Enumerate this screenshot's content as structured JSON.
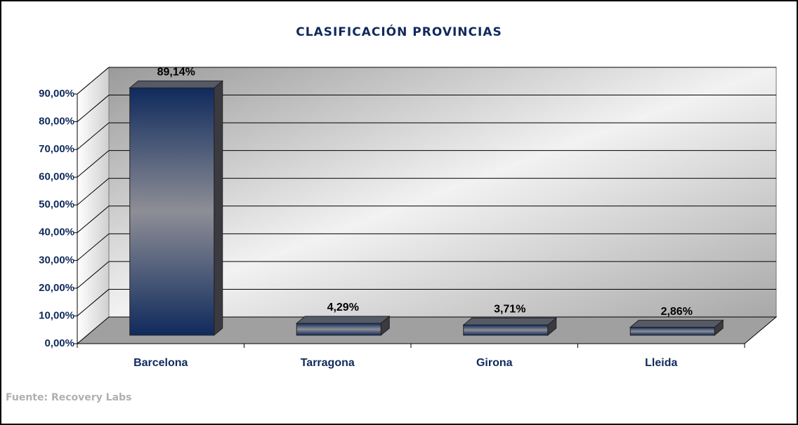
{
  "chart_data": {
    "type": "bar3d",
    "title": "CLASIFICACIÓN PROVINCIAS",
    "categories": [
      "Barcelona",
      "Tarragona",
      "Girona",
      "Lleida"
    ],
    "values": [
      89.14,
      4.29,
      3.71,
      2.86
    ],
    "value_labels": [
      "89,14%",
      "4,29%",
      "3,71%",
      "2,86%"
    ],
    "color": "#0f2a5c",
    "ylim": [
      0,
      90
    ],
    "yticks": [
      {
        "value": 0,
        "label": "0,00%"
      },
      {
        "value": 10,
        "label": "10,00%"
      },
      {
        "value": 20,
        "label": "20,00%"
      },
      {
        "value": 30,
        "label": "30,00%"
      },
      {
        "value": 40,
        "label": "40,00%"
      },
      {
        "value": 50,
        "label": "50,00%"
      },
      {
        "value": 60,
        "label": "60,00%"
      },
      {
        "value": 70,
        "label": "70,00%"
      },
      {
        "value": 80,
        "label": "80,00%"
      },
      {
        "value": 90,
        "label": "90,00%"
      }
    ],
    "grid": true,
    "source": "Fuente: Recovery Labs"
  }
}
